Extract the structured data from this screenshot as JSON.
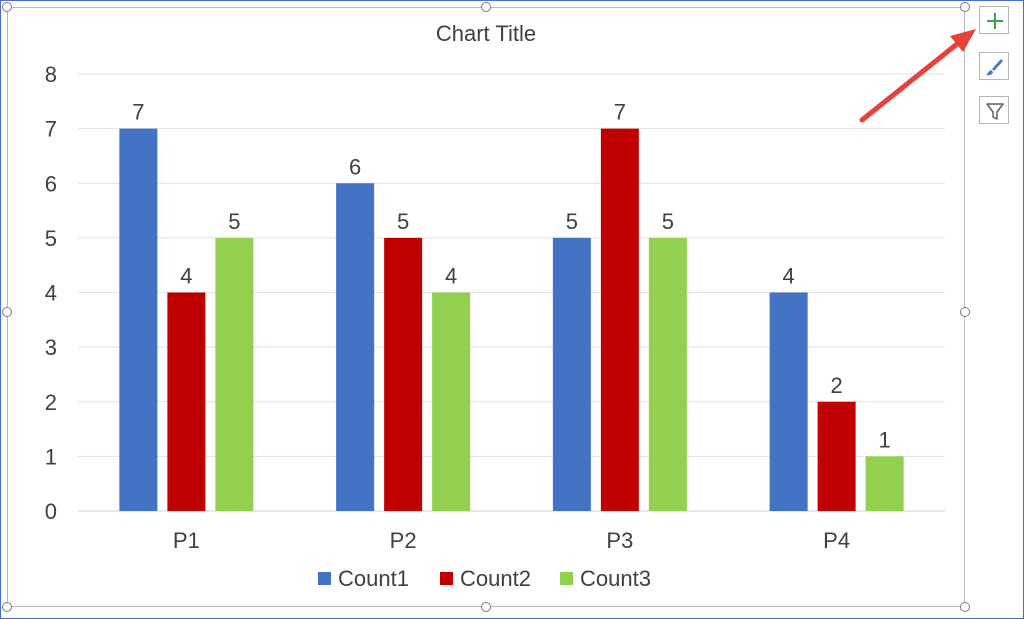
{
  "chart_data": {
    "type": "bar",
    "title": "Chart Title",
    "categories": [
      "P1",
      "P2",
      "P3",
      "P4"
    ],
    "series": [
      {
        "name": "Count1",
        "color": "#4472c4",
        "values": [
          7,
          6,
          5,
          4
        ]
      },
      {
        "name": "Count2",
        "color": "#c00000",
        "values": [
          4,
          5,
          7,
          2
        ]
      },
      {
        "name": "Count3",
        "color": "#92d050",
        "values": [
          5,
          4,
          5,
          1
        ]
      }
    ],
    "ylim": [
      0,
      8
    ],
    "yticks": [
      0,
      1,
      2,
      3,
      4,
      5,
      6,
      7,
      8
    ],
    "grid": true,
    "data_labels": true,
    "legend_position": "bottom"
  },
  "side_buttons": {
    "chart_elements_icon": "plus-icon",
    "chart_styles_icon": "brush-icon",
    "chart_filters_icon": "filter-icon"
  },
  "annotation": {
    "arrow_color": "#e8413b"
  }
}
